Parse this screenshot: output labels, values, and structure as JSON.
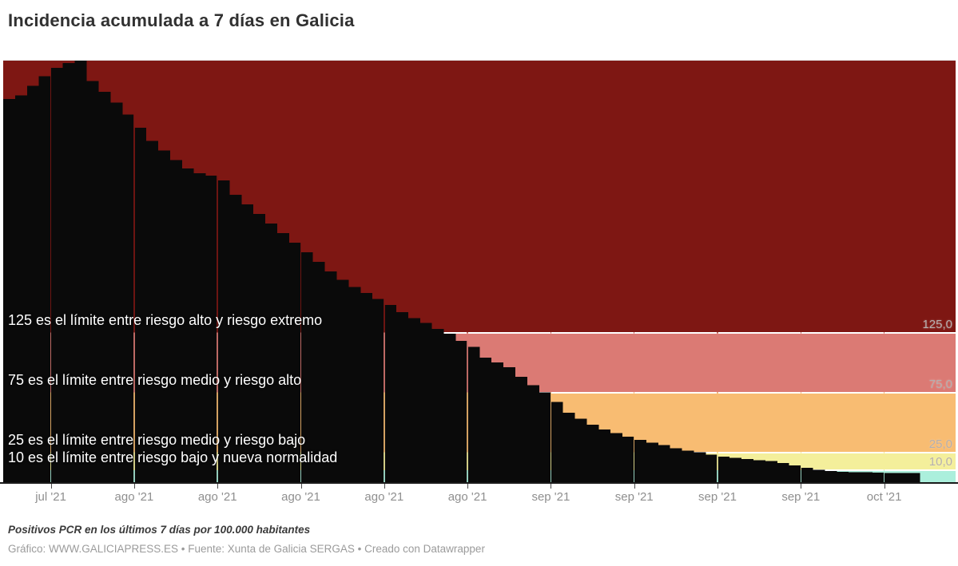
{
  "header": {
    "title": "Incidencia acumulada a 7 días en Galicia"
  },
  "footer": {
    "note": "Positivos PCR en los últimos 7 días por 100.000 habitantes",
    "attribution": "Gráfico: WWW.GALICIAPRESS.ES • Fuente: Xunta de Galicia SERGAS • Creado con Datawrapper"
  },
  "chart_data": {
    "type": "bar",
    "title": "Incidencia acumulada a 7 días en Galicia",
    "xlabel": "",
    "ylabel": "Positivos PCR en los últimos 7 días por 100.000 habitantes",
    "ylim": [
      0,
      352
    ],
    "grid": "vertical-ticks-only",
    "bar_color": "#0a0a0a",
    "x": {
      "unit": "day",
      "start_date": "2021-07-22",
      "end_date": "2021-10-06",
      "axis_slots": 80
    },
    "values": [
      320,
      323,
      331,
      339,
      346,
      350,
      352,
      335,
      326,
      317,
      307,
      296,
      285,
      277,
      269,
      262,
      258,
      256,
      252,
      240,
      232,
      224,
      216,
      208,
      200,
      192,
      184,
      176,
      169,
      163,
      158,
      153,
      148,
      142,
      137,
      133,
      128,
      124,
      118,
      113,
      104,
      100,
      96,
      88,
      81,
      75,
      67,
      58,
      53,
      48,
      44,
      41,
      38,
      35.5,
      33,
      31,
      28.5,
      26.5,
      25,
      23,
      21.5,
      20.5,
      19.5,
      18.5,
      17.8,
      16,
      14,
      12,
      10.5,
      9.5,
      8.8,
      8.4,
      8.2,
      8,
      7.8,
      7.7,
      7.6
    ],
    "zones": [
      {
        "name": "riesgo-extremo",
        "from": 125,
        "to": 352,
        "color": "#7e1713"
      },
      {
        "name": "riesgo-alto",
        "from": 75,
        "to": 125,
        "color": "#db7a74"
      },
      {
        "name": "riesgo-medio",
        "from": 25,
        "to": 75,
        "color": "#f8bc72"
      },
      {
        "name": "riesgo-bajo",
        "from": 10,
        "to": 25,
        "color": "#f4ef9b"
      },
      {
        "name": "nueva-normalidad",
        "from": 0,
        "to": 10,
        "color": "#abefdc"
      }
    ],
    "threshold_lines": [
      125,
      75,
      25,
      10
    ],
    "threshold_line_color": "#ffffff",
    "annotations": [
      {
        "value": 125,
        "text": "125 es el límite entre riesgo alto y riesgo extremo"
      },
      {
        "value": 75,
        "text": "75 es el límite entre riesgo medio y riesgo alto"
      },
      {
        "value": 25,
        "text": "25 es el límite entre riesgo medio y riesgo bajo"
      },
      {
        "value": 10,
        "text": "10 es el límite entre riesgo bajo y nueva normalidad"
      }
    ],
    "y_axis_labels": [
      {
        "value": 125,
        "label": "125,0"
      },
      {
        "value": 75,
        "label": "75,0"
      },
      {
        "value": 25,
        "label": "25,0"
      },
      {
        "value": 10,
        "label": "10,0"
      }
    ],
    "x_ticks": [
      {
        "slot": 4,
        "label": "jul '21"
      },
      {
        "slot": 11,
        "label": "ago '21"
      },
      {
        "slot": 18,
        "label": "ago '21"
      },
      {
        "slot": 25,
        "label": "ago '21"
      },
      {
        "slot": 32,
        "label": "ago '21"
      },
      {
        "slot": 39,
        "label": "ago '21"
      },
      {
        "slot": 46,
        "label": "sep '21"
      },
      {
        "slot": 53,
        "label": "sep '21"
      },
      {
        "slot": 60,
        "label": "sep '21"
      },
      {
        "slot": 67,
        "label": "sep '21"
      },
      {
        "slot": 74,
        "label": "oct '21"
      }
    ],
    "legend": "none"
  }
}
